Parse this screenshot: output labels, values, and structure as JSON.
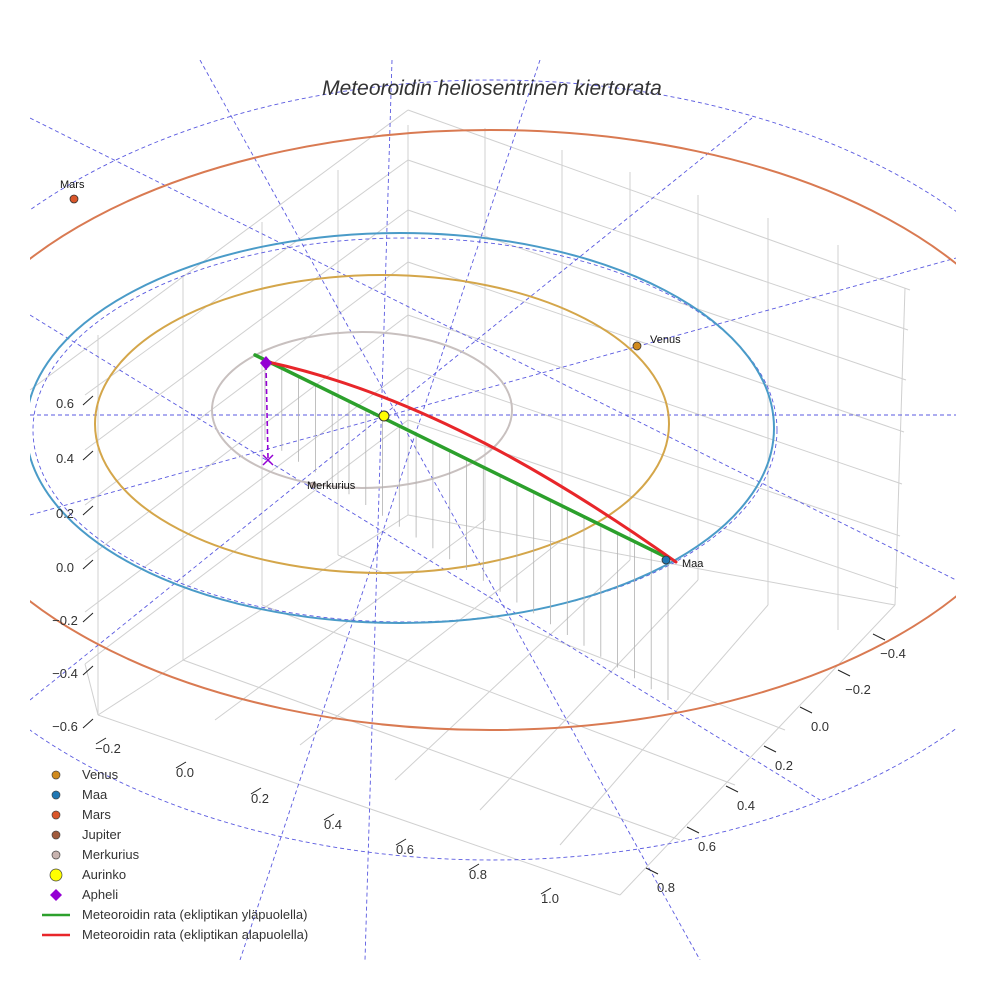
{
  "chart_data": {
    "type": "scatter3d",
    "title": "Meteoroidin heliosentrinen kiertorata",
    "axes": {
      "x_ticks": [
        "−0.2",
        "0.0",
        "0.2",
        "0.4",
        "0.6",
        "0.8",
        "1.0"
      ],
      "y_ticks": [
        "−0.4",
        "−0.2",
        "0.0",
        "0.2",
        "0.4",
        "0.6",
        "0.8"
      ],
      "z_ticks": [
        "0.6",
        "0.4",
        "0.2",
        "0.0",
        "−0.2",
        "−0.4",
        "−0.6"
      ]
    },
    "planets": [
      {
        "name": "Venus",
        "color": "#d08a1e",
        "orbit_color": "#d4a64a"
      },
      {
        "name": "Maa",
        "color": "#1f77b4",
        "orbit_color": "#4a9bc8"
      },
      {
        "name": "Mars",
        "color": "#d9562a",
        "orbit_color": "#d97a52"
      },
      {
        "name": "Merkurius",
        "color": "#c8b4b0",
        "orbit_color": "#c8c0bf"
      }
    ],
    "point_labels": [
      "Mars",
      "Venus",
      "Merkurius",
      "Maa"
    ],
    "legend": [
      {
        "label": "Venus",
        "marker": "circle",
        "color": "#d08a1e"
      },
      {
        "label": "Maa",
        "marker": "circle",
        "color": "#1f77b4"
      },
      {
        "label": "Mars",
        "marker": "circle",
        "color": "#d9562a"
      },
      {
        "label": "Jupiter",
        "marker": "circle",
        "color": "#a05a3c"
      },
      {
        "label": "Merkurius",
        "marker": "circle",
        "color": "#c8b4b0"
      },
      {
        "label": "Aurinko",
        "marker": "circle",
        "color": "#ffff00"
      },
      {
        "label": "Apheli",
        "marker": "diamond",
        "color": "#9400d3"
      },
      {
        "label": "Meteoroidin rata (ekliptikan yläpuolella)",
        "marker": "line",
        "color": "#2ca02c"
      },
      {
        "label": "Meteoroidin rata (ekliptikan alapuolella)",
        "marker": "line",
        "color": "#e8262a"
      }
    ],
    "ecliptic_grid_color": "#5a5ae0",
    "meteoroid_above_color": "#2ca02c",
    "meteoroid_below_color": "#e8262a",
    "aphelion_color": "#9400d3"
  }
}
